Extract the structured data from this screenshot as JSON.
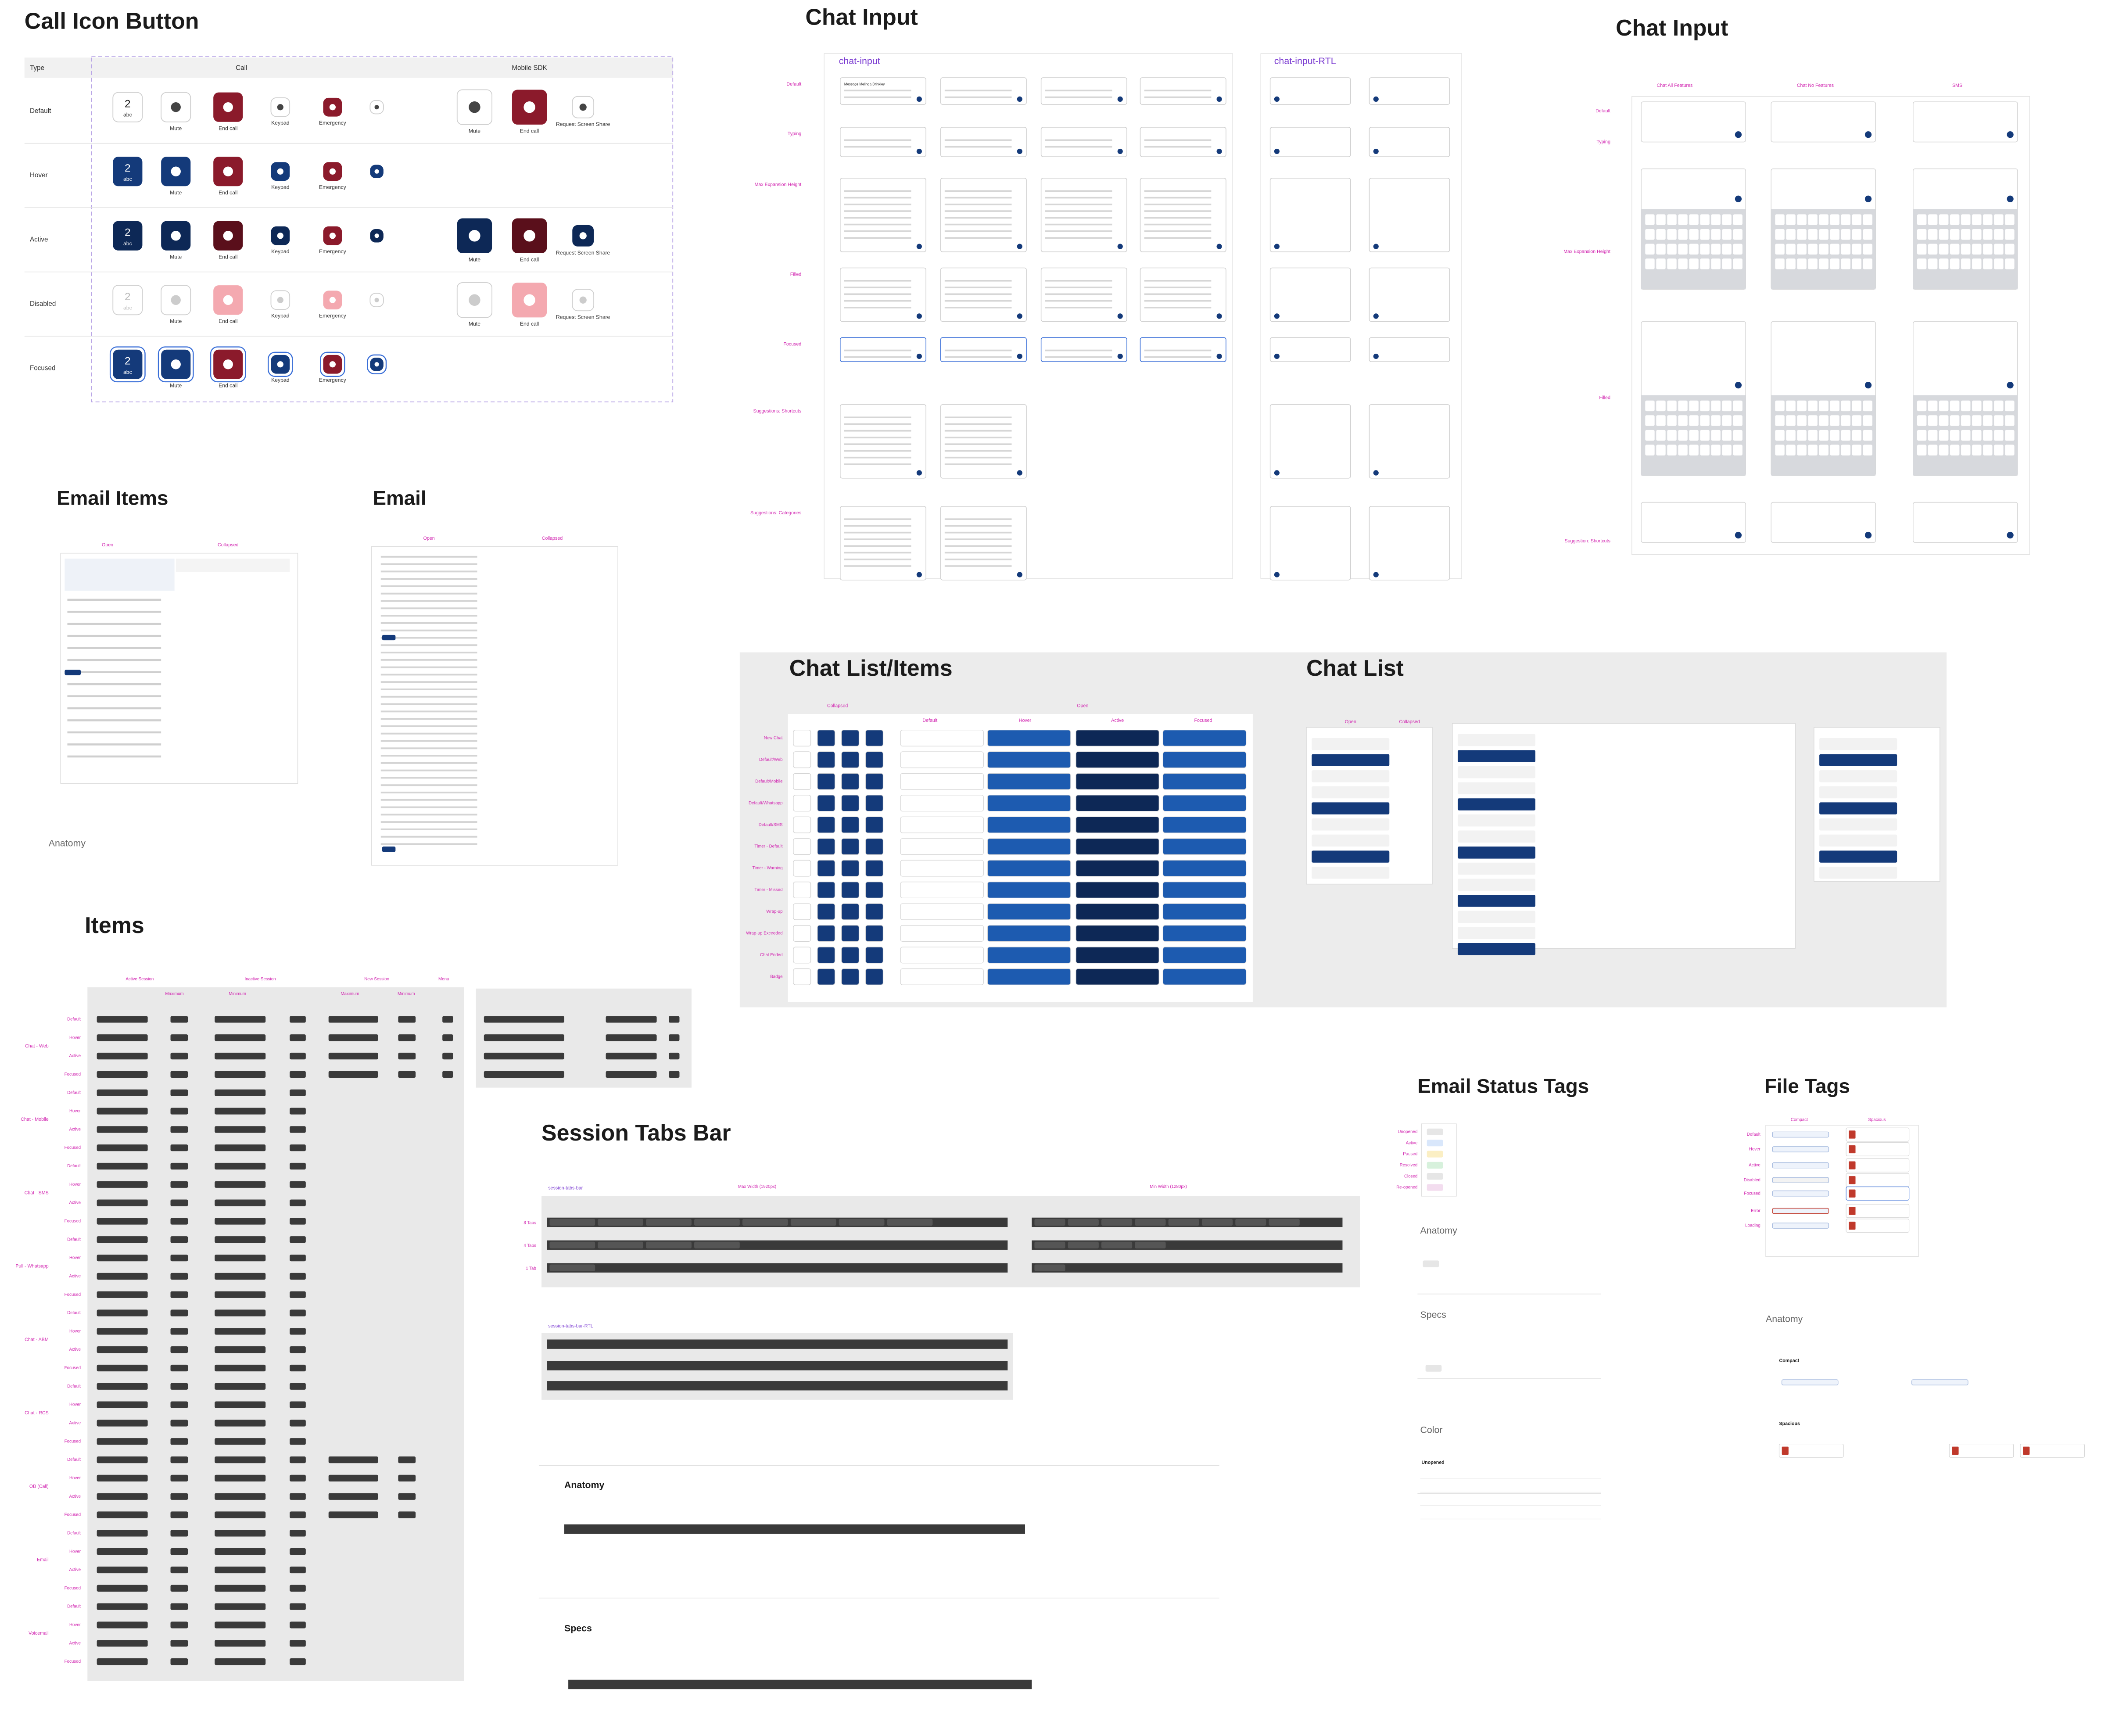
{
  "call_icon_button": {
    "title": "Call Icon Button",
    "headers": [
      "Type",
      "Call",
      "Mobile SDK"
    ],
    "rows": [
      "Default",
      "Hover",
      "Active",
      "Disabled",
      "Focused"
    ],
    "buttons": [
      "Mute",
      "End call",
      "Keypad",
      "Emergency"
    ],
    "keypad_digit": "2",
    "keypad_letters": "abc",
    "sdk_buttons": [
      "Mute",
      "End call",
      "Request Screen Share"
    ]
  },
  "chat_input": {
    "title": "Chat Input",
    "components": [
      "chat-input",
      "chat-input-RTL"
    ],
    "rows": [
      "Default",
      "Typing",
      "Max Expansion Height",
      "Filled",
      "Focused",
      "Suggestions: Shortcuts",
      "Suggestions: Categories"
    ],
    "placeholder": "Message Melinda Brinkley"
  },
  "chat_input_mobile": {
    "title": "Chat Input",
    "columns": [
      "Chat All Features",
      "Chat No Features",
      "SMS"
    ],
    "rows": [
      "Default",
      "Typing",
      "Max Expansion Height",
      "Filled",
      "Suggestion: Shortcuts"
    ]
  },
  "email_items": {
    "title": "Email Items",
    "columns": [
      "Open",
      "Collapsed"
    ],
    "anatomy": "Anatomy"
  },
  "email": {
    "title": "Email",
    "columns": [
      "Open",
      "Collapsed"
    ]
  },
  "items": {
    "title": "Items",
    "columns": [
      "Active Session",
      "Inactive Session",
      "New Session",
      "Menu"
    ],
    "sizes": [
      "Maximum",
      "Minimum"
    ],
    "groups": [
      "Chat - Web",
      "Chat - Mobile",
      "Chat - SMS",
      "Pull - Whatsapp",
      "Chat - ABM",
      "Chat - RCS",
      "OB (Call)",
      "Email",
      "Voicemail"
    ],
    "states": [
      "Default",
      "Hover",
      "Active",
      "Focused"
    ]
  },
  "chat_list_items": {
    "title": "Chat List/Items",
    "groups": [
      "Collapsed",
      "Open"
    ],
    "columns": [
      "Default",
      "Hover",
      "Active",
      "Focused"
    ],
    "rows": [
      "New Chat",
      "Default/Web",
      "Default/Mobile",
      "Default/Whatsapp",
      "Default/SMS",
      "Timer - Default",
      "Timer - Warning",
      "Timer - Missed",
      "Wrap-up",
      "Wrap-up Exceeded",
      "Chat Ended",
      "Badge"
    ]
  },
  "chat_list": {
    "title": "Chat List",
    "columns": [
      "Open",
      "Collapsed"
    ]
  },
  "session_tabs_bar": {
    "title": "Session Tabs Bar",
    "component": "session-tabs-bar",
    "rtl_component": "session-tabs-bar-RTL",
    "widths": [
      "Max Width (1920px)",
      "Min Width (1280px)"
    ],
    "rows": [
      "8 Tabs",
      "4 Tabs",
      "1 Tab"
    ],
    "anatomy": "Anatomy",
    "specs": "Specs"
  },
  "email_status_tags": {
    "title": "Email Status Tags",
    "states": [
      "Unopened",
      "Active",
      "Paused",
      "Resolved",
      "Closed",
      "Re-opened"
    ],
    "sections": [
      "Anatomy",
      "Specs",
      "Color"
    ],
    "color_subtitle": "Unopened"
  },
  "file_tags": {
    "title": "File Tags",
    "columns": [
      "Compact",
      "Spacious"
    ],
    "states": [
      "Default",
      "Hover",
      "Active",
      "Disabled",
      "Focused",
      "Error",
      "Loading"
    ],
    "anatomy": "Anatomy"
  }
}
